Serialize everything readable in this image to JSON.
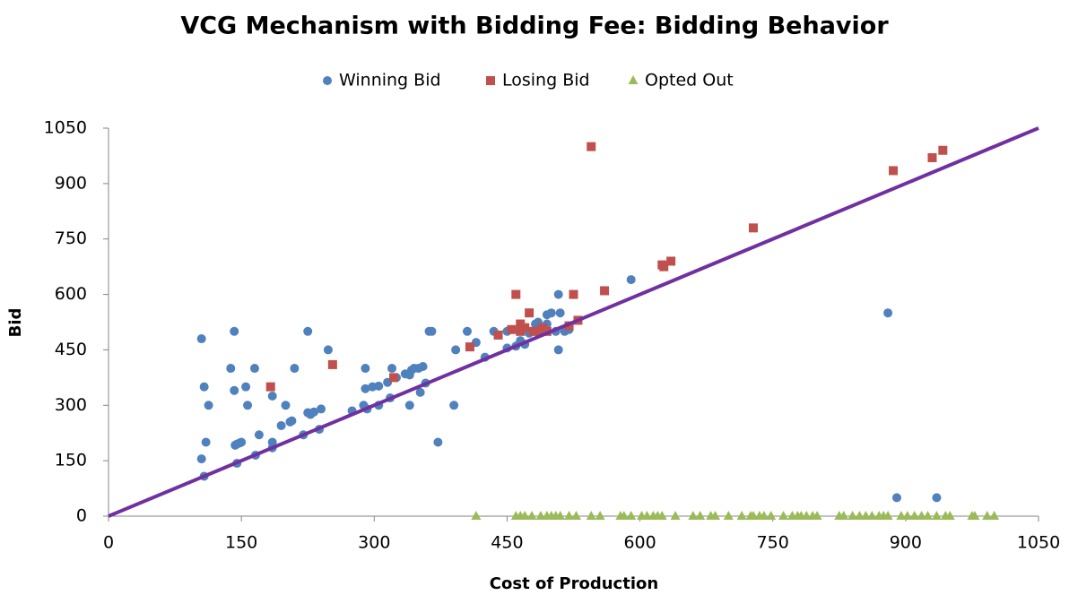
{
  "chart_data": {
    "type": "scatter",
    "title": "VCG Mechanism with Bidding Fee: Bidding Behavior",
    "x_label": "Cost of Production",
    "y_label": "Bid",
    "xlim": [
      0,
      1050
    ],
    "ylim": [
      0,
      1050
    ],
    "xticks": [
      0,
      150,
      300,
      450,
      600,
      750,
      900,
      1050
    ],
    "yticks": [
      0,
      150,
      300,
      450,
      600,
      750,
      900,
      1050
    ],
    "grid": false,
    "legend": "top",
    "series": [
      {
        "name": "Winning Bid",
        "color": "#4f81bd",
        "marker": "circle",
        "x": [
          105,
          108,
          110,
          105,
          108,
          113,
          138,
          142,
          142,
          143,
          145,
          148,
          150,
          145,
          155,
          157,
          165,
          166,
          170,
          185,
          185,
          185,
          195,
          200,
          205,
          207,
          210,
          220,
          225,
          225,
          228,
          232,
          238,
          240,
          248,
          275,
          288,
          290,
          290,
          292,
          298,
          305,
          305,
          315,
          318,
          320,
          325,
          335,
          340,
          340,
          342,
          345,
          350,
          352,
          355,
          358,
          362,
          365,
          372,
          390,
          392,
          405,
          415,
          425,
          435,
          440,
          450,
          450,
          455,
          460,
          465,
          470,
          475,
          482,
          485,
          495,
          495,
          500,
          505,
          508,
          508,
          510,
          515,
          520,
          590,
          880,
          890,
          935
        ],
        "values": [
          480,
          350,
          200,
          155,
          108,
          300,
          400,
          500,
          340,
          192,
          195,
          198,
          200,
          143,
          350,
          300,
          400,
          165,
          220,
          325,
          200,
          185,
          245,
          300,
          255,
          258,
          400,
          220,
          500,
          280,
          275,
          282,
          235,
          290,
          450,
          285,
          300,
          345,
          400,
          290,
          350,
          352,
          300,
          362,
          320,
          400,
          375,
          385,
          382,
          300,
          395,
          400,
          400,
          335,
          405,
          360,
          500,
          500,
          200,
          300,
          450,
          500,
          470,
          430,
          500,
          490,
          500,
          455,
          505,
          460,
          475,
          465,
          495,
          520,
          525,
          520,
          545,
          550,
          500,
          600,
          450,
          550,
          500,
          505,
          640,
          550,
          50,
          50
        ]
      },
      {
        "name": "Losing Bid",
        "color": "#c0504d",
        "marker": "square",
        "x": [
          183,
          253,
          322,
          408,
          440,
          455,
          460,
          465,
          465,
          470,
          475,
          480,
          485,
          490,
          495,
          525,
          520,
          530,
          545,
          560,
          625,
          627,
          635,
          728,
          886,
          930,
          942
        ],
        "values": [
          350,
          410,
          375,
          458,
          490,
          505,
          600,
          520,
          500,
          510,
          550,
          500,
          500,
          510,
          500,
          600,
          515,
          530,
          1000,
          610,
          680,
          675,
          690,
          780,
          935,
          970,
          990
        ]
      },
      {
        "name": "Opted Out",
        "color": "#9bbb59",
        "marker": "triangle",
        "x": [
          415,
          460,
          465,
          470,
          478,
          488,
          495,
          500,
          505,
          510,
          520,
          528,
          545,
          555,
          578,
          582,
          590,
          602,
          608,
          615,
          620,
          625,
          640,
          660,
          668,
          680,
          685,
          700,
          715,
          725,
          728,
          735,
          740,
          748,
          762,
          772,
          778,
          782,
          788,
          795,
          800,
          825,
          830,
          840,
          848,
          855,
          862,
          870,
          875,
          880,
          895,
          902,
          910,
          918,
          925,
          935,
          945,
          950,
          975,
          978,
          992,
          1000
        ],
        "values": [
          0,
          0,
          0,
          0,
          0,
          0,
          0,
          0,
          0,
          0,
          0,
          0,
          0,
          0,
          0,
          0,
          0,
          0,
          0,
          0,
          0,
          0,
          0,
          0,
          0,
          0,
          0,
          0,
          0,
          0,
          0,
          0,
          0,
          0,
          0,
          0,
          0,
          0,
          0,
          0,
          0,
          0,
          0,
          0,
          0,
          0,
          0,
          0,
          0,
          0,
          0,
          0,
          0,
          0,
          0,
          0,
          0,
          0,
          0,
          0,
          0,
          0
        ]
      }
    ],
    "reference_line": {
      "color": "#7030a0",
      "x": [
        0,
        1050
      ],
      "values": [
        0,
        1050
      ]
    }
  }
}
